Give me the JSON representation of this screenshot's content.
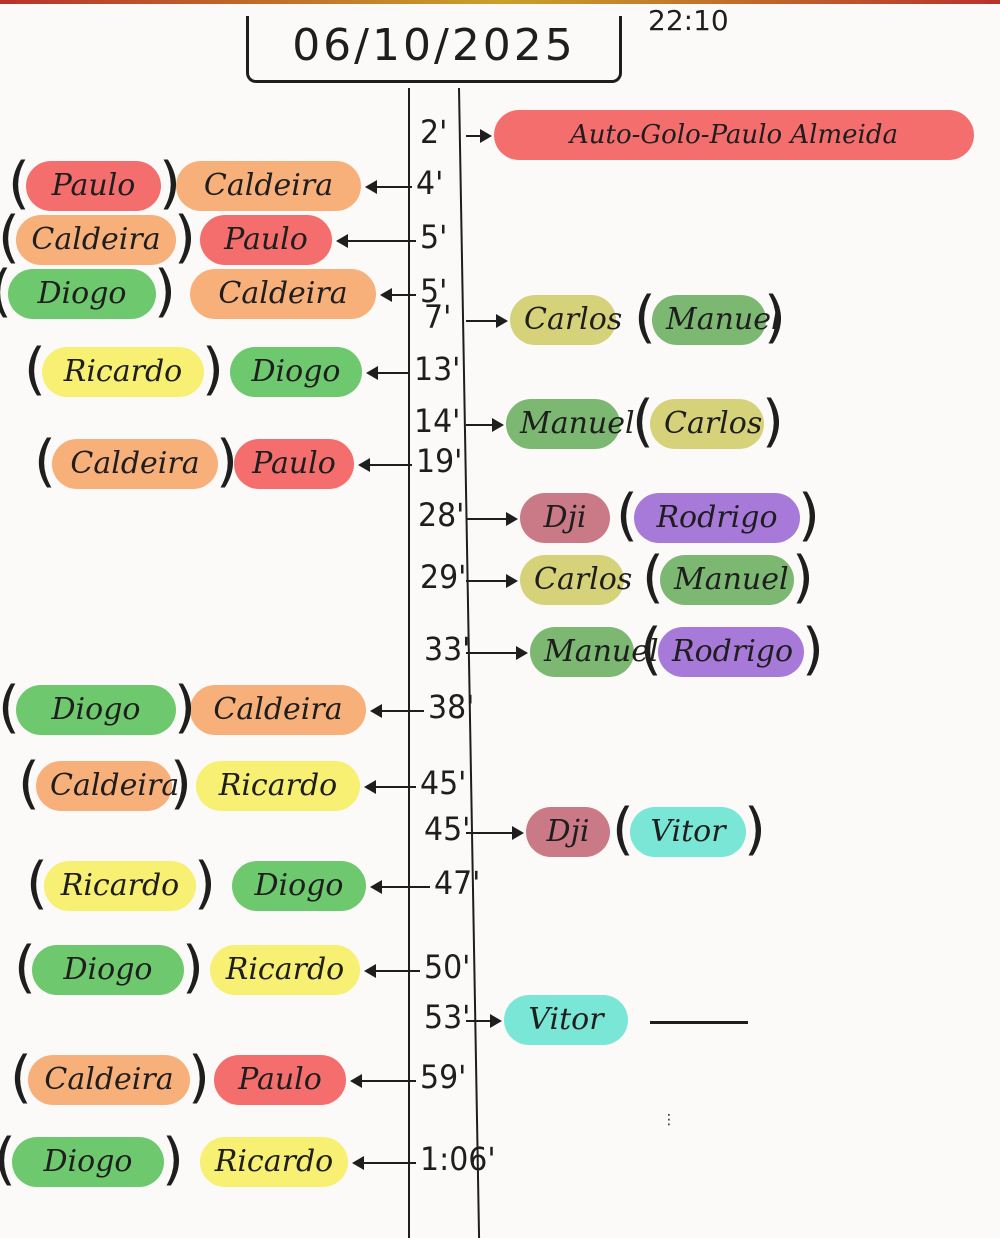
{
  "header": {
    "date": "06/10/2025",
    "time": "22:10"
  },
  "colors": {
    "Paulo": "#f56e6e",
    "Caldeira": "#f7b07a",
    "Diogo": "#6ec96e",
    "Ricardo": "#f7f073",
    "Carlos": "#d6d27a",
    "Manuel": "#7db873",
    "Dji": "#c97a86",
    "Rodrigo": "#a77ad9",
    "Vitor": "#7ae6d6",
    "AutoGolo": "#f56e6e"
  },
  "events": [
    {
      "minute": "2'",
      "side": "right",
      "scorer": "Auto-Golo-Paulo Almeida",
      "scorer_color": "#f56e6e",
      "assist": ""
    },
    {
      "minute": "4'",
      "side": "left",
      "scorer": "Caldeira",
      "scorer_color": "#f7b07a",
      "assist": "Paulo",
      "assist_color": "#f56e6e"
    },
    {
      "minute": "5'",
      "side": "left",
      "scorer": "Paulo",
      "scorer_color": "#f56e6e",
      "assist": "Caldeira",
      "assist_color": "#f7b07a"
    },
    {
      "minute": "5'",
      "side": "left",
      "scorer": "Caldeira",
      "scorer_color": "#f7b07a",
      "assist": "Diogo",
      "assist_color": "#6ec96e"
    },
    {
      "minute": "7'",
      "side": "right",
      "scorer": "Carlos",
      "scorer_color": "#d6d27a",
      "assist": "Manuel",
      "assist_color": "#7db873"
    },
    {
      "minute": "13'",
      "side": "left",
      "scorer": "Diogo",
      "scorer_color": "#6ec96e",
      "assist": "Ricardo",
      "assist_color": "#f7f073"
    },
    {
      "minute": "14'",
      "side": "right",
      "scorer": "Manuel",
      "scorer_color": "#7db873",
      "assist": "Carlos",
      "assist_color": "#d6d27a"
    },
    {
      "minute": "19'",
      "side": "left",
      "scorer": "Paulo",
      "scorer_color": "#f56e6e",
      "assist": "Caldeira",
      "assist_color": "#f7b07a"
    },
    {
      "minute": "28'",
      "side": "right",
      "scorer": "Dji",
      "scorer_color": "#c97a86",
      "assist": "Rodrigo",
      "assist_color": "#a77ad9"
    },
    {
      "minute": "29'",
      "side": "right",
      "scorer": "Carlos",
      "scorer_color": "#d6d27a",
      "assist": "Manuel",
      "assist_color": "#7db873"
    },
    {
      "minute": "33'",
      "side": "right",
      "scorer": "Manuel",
      "scorer_color": "#7db873",
      "assist": "Rodrigo",
      "assist_color": "#a77ad9"
    },
    {
      "minute": "38'",
      "side": "left",
      "scorer": "Caldeira",
      "scorer_color": "#f7b07a",
      "assist": "Diogo",
      "assist_color": "#6ec96e"
    },
    {
      "minute": "45'",
      "side": "left",
      "scorer": "Ricardo",
      "scorer_color": "#f7f073",
      "assist": "Caldeira",
      "assist_color": "#f7b07a"
    },
    {
      "minute": "45'",
      "side": "right",
      "scorer": "Dji",
      "scorer_color": "#c97a86",
      "assist": "Vitor",
      "assist_color": "#7ae6d6"
    },
    {
      "minute": "47'",
      "side": "left",
      "scorer": "Diogo",
      "scorer_color": "#6ec96e",
      "assist": "Ricardo",
      "assist_color": "#f7f073"
    },
    {
      "minute": "50'",
      "side": "left",
      "scorer": "Ricardo",
      "scorer_color": "#f7f073",
      "assist": "Diogo",
      "assist_color": "#6ec96e"
    },
    {
      "minute": "53'",
      "side": "right",
      "scorer": "Vitor",
      "scorer_color": "#7ae6d6",
      "assist": ""
    },
    {
      "minute": "59'",
      "side": "left",
      "scorer": "Paulo",
      "scorer_color": "#f56e6e",
      "assist": "Caldeira",
      "assist_color": "#f7b07a"
    },
    {
      "minute": "1:06'",
      "side": "left",
      "scorer": "Ricardo",
      "scorer_color": "#f7f073",
      "assist": "Diogo",
      "assist_color": "#6ec96e"
    }
  ]
}
